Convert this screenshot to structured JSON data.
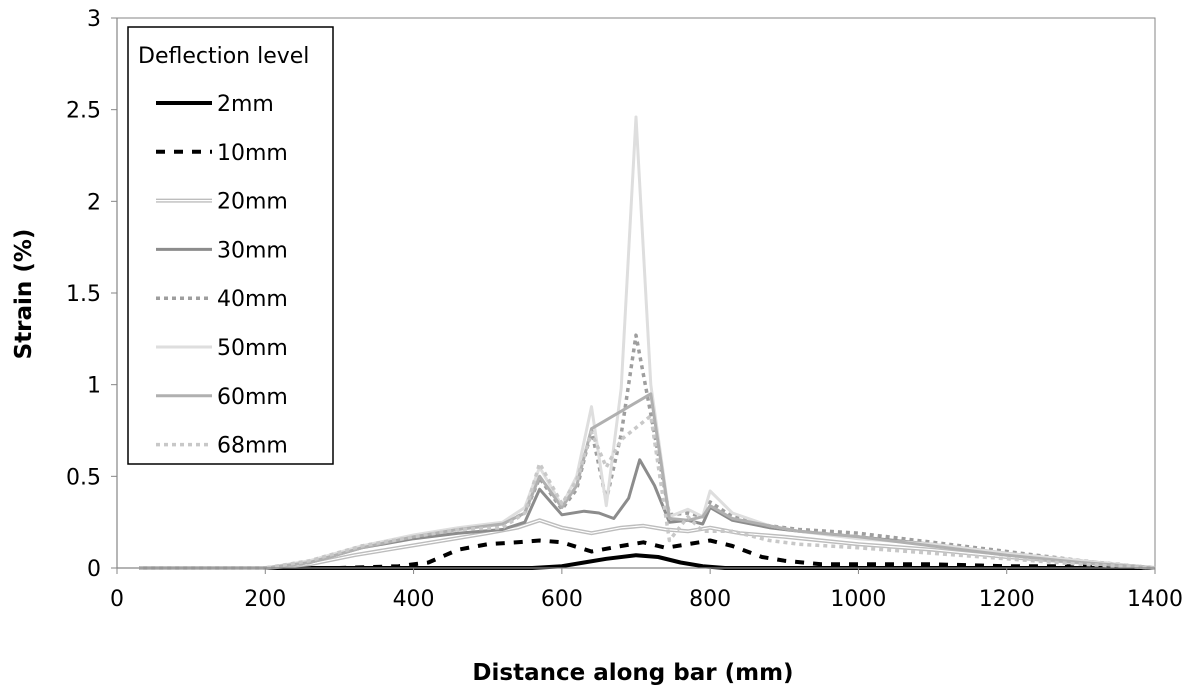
{
  "chart_data": {
    "type": "line",
    "xlabel": "Distance along bar (mm)",
    "ylabel": "Strain (%)",
    "xlim": [
      0,
      1400
    ],
    "ylim": [
      0,
      3
    ],
    "xticks": [
      0,
      200,
      400,
      600,
      800,
      1000,
      1200,
      1400
    ],
    "yticks": [
      0,
      0.5,
      1,
      1.5,
      2,
      2.5,
      3
    ],
    "grid": false,
    "legend": {
      "title": "Deflection level",
      "placement": "top-left"
    },
    "series": [
      {
        "name": "2mm",
        "color": "#000000",
        "dash": "solid",
        "points": [
          [
            30,
            0
          ],
          [
            200,
            0
          ],
          [
            300,
            0
          ],
          [
            400,
            0
          ],
          [
            500,
            0
          ],
          [
            560,
            0
          ],
          [
            600,
            0.01
          ],
          [
            630,
            0.03
          ],
          [
            660,
            0.05
          ],
          [
            700,
            0.07
          ],
          [
            730,
            0.06
          ],
          [
            760,
            0.03
          ],
          [
            790,
            0.01
          ],
          [
            820,
            0
          ],
          [
            900,
            0
          ],
          [
            1000,
            0
          ],
          [
            1100,
            0
          ],
          [
            1200,
            0
          ],
          [
            1300,
            0
          ],
          [
            1400,
            0
          ]
        ]
      },
      {
        "name": "10mm",
        "color": "#000000",
        "dash": "dashed",
        "points": [
          [
            30,
            0
          ],
          [
            200,
            0
          ],
          [
            300,
            0
          ],
          [
            380,
            0.01
          ],
          [
            420,
            0.03
          ],
          [
            460,
            0.1
          ],
          [
            500,
            0.13
          ],
          [
            540,
            0.14
          ],
          [
            570,
            0.15
          ],
          [
            600,
            0.14
          ],
          [
            640,
            0.09
          ],
          [
            680,
            0.12
          ],
          [
            710,
            0.14
          ],
          [
            740,
            0.11
          ],
          [
            770,
            0.13
          ],
          [
            800,
            0.15
          ],
          [
            830,
            0.12
          ],
          [
            870,
            0.06
          ],
          [
            900,
            0.04
          ],
          [
            950,
            0.02
          ],
          [
            1000,
            0.02
          ],
          [
            1100,
            0.02
          ],
          [
            1200,
            0.01
          ],
          [
            1300,
            0.01
          ],
          [
            1400,
            0
          ]
        ]
      },
      {
        "name": "20mm",
        "color": "#bdbdbd",
        "dash": "double",
        "points": [
          [
            30,
            0
          ],
          [
            200,
            0
          ],
          [
            260,
            0.02
          ],
          [
            320,
            0.07
          ],
          [
            380,
            0.11
          ],
          [
            440,
            0.15
          ],
          [
            500,
            0.19
          ],
          [
            540,
            0.22
          ],
          [
            570,
            0.26
          ],
          [
            600,
            0.22
          ],
          [
            640,
            0.19
          ],
          [
            680,
            0.22
          ],
          [
            710,
            0.23
          ],
          [
            740,
            0.21
          ],
          [
            770,
            0.2
          ],
          [
            800,
            0.22
          ],
          [
            840,
            0.19
          ],
          [
            900,
            0.17
          ],
          [
            1000,
            0.13
          ],
          [
            1100,
            0.1
          ],
          [
            1200,
            0.06
          ],
          [
            1300,
            0.03
          ],
          [
            1400,
            0
          ]
        ]
      },
      {
        "name": "30mm",
        "color": "#8c8c8c",
        "dash": "solid",
        "points": [
          [
            30,
            0
          ],
          [
            200,
            0
          ],
          [
            260,
            0.03
          ],
          [
            330,
            0.11
          ],
          [
            400,
            0.16
          ],
          [
            460,
            0.19
          ],
          [
            520,
            0.21
          ],
          [
            550,
            0.25
          ],
          [
            570,
            0.43
          ],
          [
            600,
            0.29
          ],
          [
            630,
            0.31
          ],
          [
            650,
            0.3
          ],
          [
            670,
            0.27
          ],
          [
            690,
            0.38
          ],
          [
            705,
            0.59
          ],
          [
            725,
            0.45
          ],
          [
            745,
            0.25
          ],
          [
            770,
            0.26
          ],
          [
            790,
            0.24
          ],
          [
            800,
            0.33
          ],
          [
            830,
            0.26
          ],
          [
            880,
            0.22
          ],
          [
            920,
            0.2
          ],
          [
            1000,
            0.17
          ],
          [
            1100,
            0.13
          ],
          [
            1200,
            0.08
          ],
          [
            1300,
            0.04
          ],
          [
            1400,
            0
          ]
        ]
      },
      {
        "name": "40mm",
        "color": "#9e9e9e",
        "dash": "dotted",
        "points": [
          [
            30,
            0
          ],
          [
            200,
            0
          ],
          [
            260,
            0.03
          ],
          [
            330,
            0.12
          ],
          [
            400,
            0.17
          ],
          [
            460,
            0.21
          ],
          [
            520,
            0.24
          ],
          [
            550,
            0.3
          ],
          [
            570,
            0.49
          ],
          [
            600,
            0.32
          ],
          [
            620,
            0.43
          ],
          [
            640,
            0.75
          ],
          [
            660,
            0.37
          ],
          [
            680,
            0.73
          ],
          [
            700,
            1.27
          ],
          [
            720,
            0.84
          ],
          [
            745,
            0.29
          ],
          [
            770,
            0.3
          ],
          [
            790,
            0.28
          ],
          [
            800,
            0.36
          ],
          [
            830,
            0.28
          ],
          [
            880,
            0.23
          ],
          [
            920,
            0.21
          ],
          [
            1000,
            0.19
          ],
          [
            1100,
            0.14
          ],
          [
            1200,
            0.09
          ],
          [
            1300,
            0.04
          ],
          [
            1400,
            0
          ]
        ]
      },
      {
        "name": "50mm",
        "color": "#dedede",
        "dash": "solid",
        "points": [
          [
            30,
            0
          ],
          [
            200,
            0
          ],
          [
            260,
            0.04
          ],
          [
            330,
            0.12
          ],
          [
            400,
            0.18
          ],
          [
            460,
            0.22
          ],
          [
            520,
            0.25
          ],
          [
            550,
            0.33
          ],
          [
            570,
            0.55
          ],
          [
            600,
            0.34
          ],
          [
            620,
            0.5
          ],
          [
            640,
            0.88
          ],
          [
            660,
            0.34
          ],
          [
            680,
            0.98
          ],
          [
            700,
            2.46
          ],
          [
            720,
            1.0
          ],
          [
            745,
            0.28
          ],
          [
            770,
            0.32
          ],
          [
            790,
            0.28
          ],
          [
            800,
            0.42
          ],
          [
            830,
            0.3
          ],
          [
            880,
            0.23
          ],
          [
            920,
            0.2
          ],
          [
            1000,
            0.16
          ],
          [
            1100,
            0.13
          ],
          [
            1200,
            0.08
          ],
          [
            1300,
            0.04
          ],
          [
            1400,
            0
          ]
        ]
      },
      {
        "name": "60mm",
        "color": "#b0b0b0",
        "dash": "solid",
        "points": [
          [
            30,
            0
          ],
          [
            200,
            0
          ],
          [
            260,
            0.03
          ],
          [
            330,
            0.11
          ],
          [
            400,
            0.17
          ],
          [
            460,
            0.21
          ],
          [
            520,
            0.24
          ],
          [
            550,
            0.3
          ],
          [
            570,
            0.5
          ],
          [
            600,
            0.33
          ],
          [
            620,
            0.45
          ],
          [
            640,
            0.76
          ],
          [
            720,
            0.95
          ],
          [
            745,
            0.27
          ],
          [
            770,
            0.26
          ],
          [
            790,
            0.28
          ],
          [
            800,
            0.34
          ],
          [
            830,
            0.27
          ],
          [
            880,
            0.23
          ],
          [
            920,
            0.2
          ],
          [
            1000,
            0.17
          ],
          [
            1100,
            0.12
          ],
          [
            1200,
            0.07
          ],
          [
            1300,
            0.03
          ],
          [
            1400,
            0
          ]
        ]
      },
      {
        "name": "68mm",
        "color": "#c8c8c8",
        "dash": "dotted",
        "points": [
          [
            30,
            0
          ],
          [
            200,
            0
          ],
          [
            260,
            0.04
          ],
          [
            330,
            0.12
          ],
          [
            400,
            0.17
          ],
          [
            460,
            0.21
          ],
          [
            520,
            0.22
          ],
          [
            550,
            0.3
          ],
          [
            570,
            0.57
          ],
          [
            600,
            0.35
          ],
          [
            620,
            0.48
          ],
          [
            640,
            0.74
          ],
          [
            660,
            0.55
          ],
          [
            680,
            0.7
          ],
          [
            720,
            0.83
          ],
          [
            745,
            0.15
          ],
          [
            770,
            0.28
          ],
          [
            790,
            0.2
          ],
          [
            800,
            0.2
          ],
          [
            830,
            0.2
          ],
          [
            880,
            0.15
          ],
          [
            920,
            0.13
          ],
          [
            1000,
            0.11
          ],
          [
            1100,
            0.08
          ],
          [
            1200,
            0.05
          ],
          [
            1300,
            0.02
          ],
          [
            1400,
            0
          ]
        ]
      }
    ]
  }
}
